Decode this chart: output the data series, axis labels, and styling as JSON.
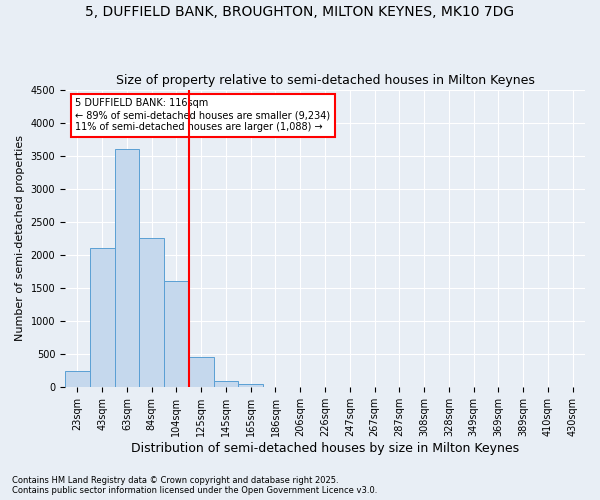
{
  "title1": "5, DUFFIELD BANK, BROUGHTON, MILTON KEYNES, MK10 7DG",
  "title2": "Size of property relative to semi-detached houses in Milton Keynes",
  "xlabel": "Distribution of semi-detached houses by size in Milton Keynes",
  "ylabel": "Number of semi-detached properties",
  "bar_labels": [
    "23sqm",
    "43sqm",
    "63sqm",
    "84sqm",
    "104sqm",
    "125sqm",
    "145sqm",
    "165sqm",
    "186sqm",
    "206sqm",
    "226sqm",
    "247sqm",
    "267sqm",
    "287sqm",
    "308sqm",
    "328sqm",
    "349sqm",
    "369sqm",
    "389sqm",
    "410sqm",
    "430sqm"
  ],
  "bar_values": [
    240,
    2100,
    3600,
    2250,
    1600,
    460,
    100,
    50,
    0,
    0,
    0,
    0,
    0,
    0,
    0,
    0,
    0,
    0,
    0,
    0,
    0
  ],
  "bar_color": "#c5d8ed",
  "bar_edge_color": "#5a9fd4",
  "background_color": "#e8eef5",
  "vline_color": "red",
  "vline_pos": 4.5,
  "annotation_line1": "5 DUFFIELD BANK: 116sqm",
  "annotation_line2": "← 89% of semi-detached houses are smaller (9,234)",
  "annotation_line3": "11% of semi-detached houses are larger (1,088) →",
  "annotation_box_color": "white",
  "annotation_box_edge": "red",
  "ylim": [
    0,
    4500
  ],
  "yticks": [
    0,
    500,
    1000,
    1500,
    2000,
    2500,
    3000,
    3500,
    4000,
    4500
  ],
  "footer1": "Contains HM Land Registry data © Crown copyright and database right 2025.",
  "footer2": "Contains public sector information licensed under the Open Government Licence v3.0.",
  "title1_fontsize": 10,
  "title2_fontsize": 9,
  "tick_fontsize": 7,
  "ylabel_fontsize": 8,
  "xlabel_fontsize": 9,
  "annotation_fontsize": 7,
  "footer_fontsize": 6
}
